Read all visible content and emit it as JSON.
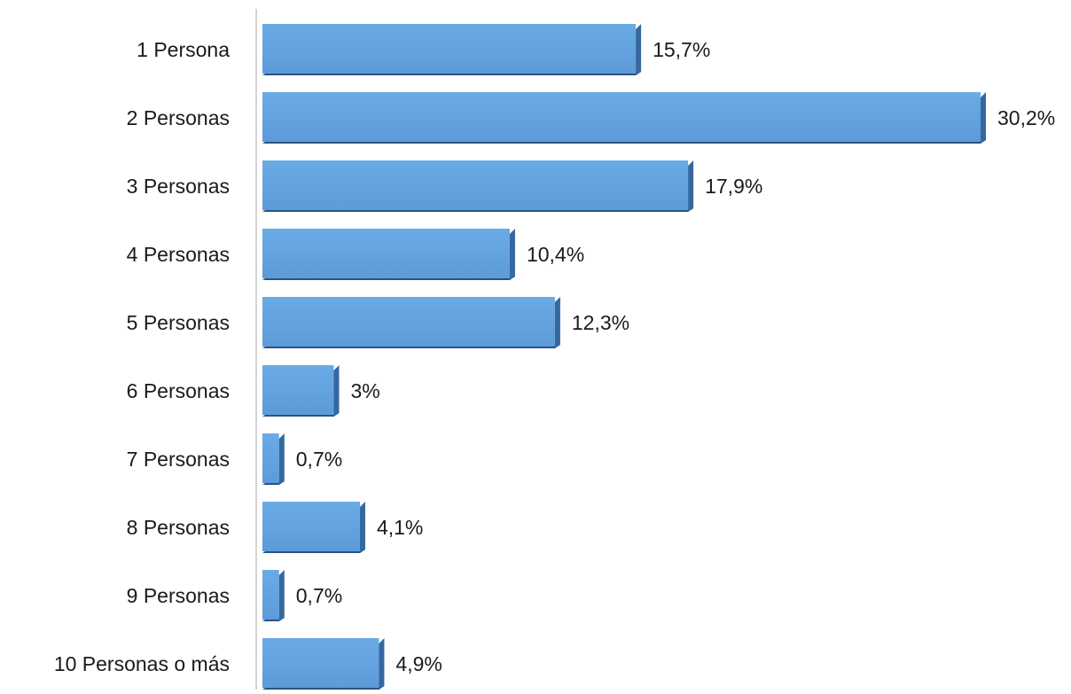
{
  "chart_data": {
    "type": "bar",
    "orientation": "horizontal",
    "categories": [
      "1 Persona",
      "2 Personas",
      "3 Personas",
      "4 Personas",
      "5 Personas",
      "6 Personas",
      "7 Personas",
      "8 Personas",
      "9 Personas",
      "10 Personas o más"
    ],
    "values": [
      15.7,
      30.2,
      17.9,
      10.4,
      12.3,
      3,
      0.7,
      4.1,
      0.7,
      4.9
    ],
    "value_labels": [
      "15,7%",
      "30,2%",
      "17,9%",
      "10,4%",
      "12,3%",
      "3%",
      "0,7%",
      "4,1%",
      "0,7%",
      "4,9%"
    ],
    "title": "",
    "xlabel": "",
    "ylabel": "",
    "xlim": [
      0,
      30.2
    ],
    "grid": false,
    "legend": "none",
    "bar_style": "3d",
    "colors": {
      "bar_face": "#66a6e2",
      "bar_side": "#34689e",
      "bar_bottom": "#2a5480",
      "axis_line": "#d4d4d4",
      "text": "#1a1a1a"
    }
  }
}
